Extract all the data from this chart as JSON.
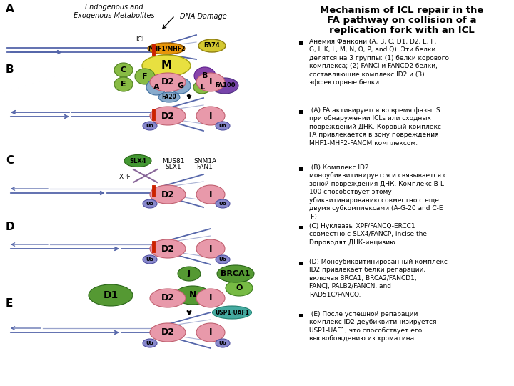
{
  "title_line1": "Mechanism of ICL repair in the",
  "title_line2": "FA pathway on collision of a",
  "title_line3": "replication fork with an ICL",
  "bullet1_text": "Анемия Фанкони (A, B, C, D1, D2, E, F,\nG, I, K, L, M, N, O, P, and Q). Эти белки\nделятся на 3 группы: (1) белки корового\nкомплекса; (2) FANCI и FANCD2 белки,\nсоставляющие комплекс ID2 и (3)\nэффекторные белки",
  "bullet2_text": " (A) FA активируется во время фазы  S\nпри обнаружении ICLs или сходных\nповреждений ДНК. Коровый комплекс\nFA привлекается в зону повреждения\nMHF1-MHF2-FANCM комплексом.",
  "bullet3_text": " (B) Комплекс ID2\nмоноубиквитинируется и связывается с\nзоной повреждения ДНК. Комплекс B-L-\n100 способствует этому\nубиквитинированию совместно с еще\nдвумя субкомплексами (A-G-20 and C-E\n-F)",
  "bullet4_text": "(C) Нуклеазы XPF/FANCQ-ERCC1\nсовместно с SLX4/FANCP, incise the\nDпроводят ДНК-инцизию",
  "bullet5_text": "(D) Моноубиквитинированный комплекс\nID2 привлекает белки репарации,\nвключая BRCA1, BRCA2/FANCD1,\nFANCJ, PALB2/FANCN, and\nRAD51C/FANCO.",
  "bullet6_text": " (E) После успешной репарации\nкомплекс ID2 деубиквитинизируется\nUSP1-UAF1, что способствует его\nвысвобождению из хроматина.",
  "bg_color": "#ffffff",
  "dna_color": "#5566aa",
  "icl_color": "#cc2200"
}
